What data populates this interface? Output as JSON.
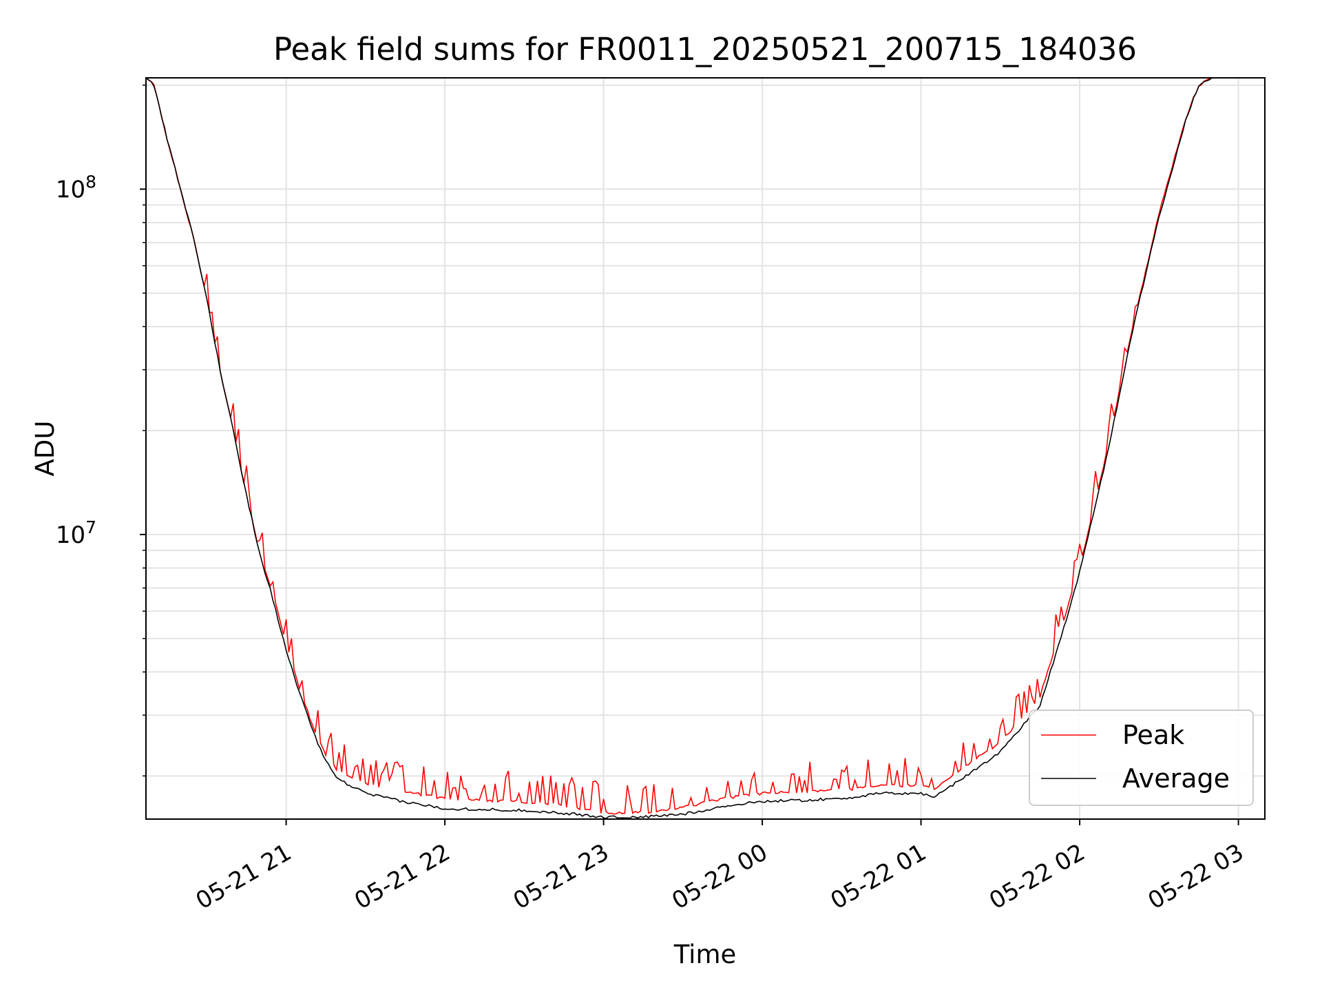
{
  "chart_data": {
    "type": "line",
    "title": "Peak field sums for FR0011_20250521_200715_184036",
    "xlabel": "Time",
    "ylabel": "ADU",
    "y_scale": "log",
    "xlim": [
      "2025-05-21 20:07",
      "2025-05-22 03:10"
    ],
    "ylim": [
      1500000,
      210000000
    ],
    "grid": true,
    "legend_position": "lower-right",
    "x_ticks": [
      "2025-05-21 21:00",
      "2025-05-21 22:00",
      "2025-05-21 23:00",
      "2025-05-22 00:00",
      "2025-05-22 01:00",
      "2025-05-22 02:00",
      "2025-05-22 03:00"
    ],
    "x_tick_labels": [
      "05-21 21",
      "05-21 22",
      "05-21 23",
      "05-22 00",
      "05-22 01",
      "05-22 02",
      "05-22 03"
    ],
    "y_ticks": [
      10000000,
      100000000
    ],
    "y_tick_mantissa": "10",
    "y_tick_exponents": [
      "7",
      "8"
    ],
    "series": [
      {
        "name": "Peak",
        "color": "#ff0000",
        "noise_spikes": true,
        "points": [
          [
            "2025-05-21 20:07",
            210000000
          ],
          [
            "2025-05-21 20:10",
            200000000
          ],
          [
            "2025-05-21 20:15",
            140000000
          ],
          [
            "2025-05-21 20:20",
            100000000
          ],
          [
            "2025-05-21 20:25",
            72000000
          ],
          [
            "2025-05-21 20:30",
            48000000
          ],
          [
            "2025-05-21 20:35",
            30000000
          ],
          [
            "2025-05-21 20:40",
            20000000
          ],
          [
            "2025-05-21 20:45",
            13000000
          ],
          [
            "2025-05-21 20:50",
            8800000
          ],
          [
            "2025-05-21 20:55",
            6800000
          ],
          [
            "2025-05-21 21:00",
            4800000
          ],
          [
            "2025-05-21 21:05",
            3600000
          ],
          [
            "2025-05-21 21:10",
            2800000
          ],
          [
            "2025-05-21 21:15",
            2300000
          ],
          [
            "2025-05-21 21:20",
            2050000
          ],
          [
            "2025-05-21 21:30",
            1900000
          ],
          [
            "2025-05-21 21:45",
            1800000
          ],
          [
            "2025-05-21 22:00",
            1720000
          ],
          [
            "2025-05-21 22:15",
            1700000
          ],
          [
            "2025-05-21 22:30",
            1680000
          ],
          [
            "2025-05-21 22:45",
            1640000
          ],
          [
            "2025-05-21 23:00",
            1560000
          ],
          [
            "2025-05-21 23:15",
            1570000
          ],
          [
            "2025-05-21 23:30",
            1620000
          ],
          [
            "2025-05-21 23:45",
            1720000
          ],
          [
            "2025-05-22 00:00",
            1780000
          ],
          [
            "2025-05-22 00:15",
            1800000
          ],
          [
            "2025-05-22 00:30",
            1820000
          ],
          [
            "2025-05-22 00:45",
            1870000
          ],
          [
            "2025-05-22 01:00",
            1880000
          ],
          [
            "2025-05-22 01:05",
            1820000
          ],
          [
            "2025-05-22 01:15",
            2100000
          ],
          [
            "2025-05-22 01:30",
            2500000
          ],
          [
            "2025-05-22 01:45",
            3400000
          ],
          [
            "2025-05-22 01:55",
            6000000
          ],
          [
            "2025-05-22 02:00",
            8000000
          ],
          [
            "2025-05-22 02:10",
            17000000
          ],
          [
            "2025-05-22 02:20",
            40000000
          ],
          [
            "2025-05-22 02:30",
            85000000
          ],
          [
            "2025-05-22 02:40",
            160000000
          ],
          [
            "2025-05-22 02:45",
            200000000
          ],
          [
            "2025-05-22 02:50",
            210000000
          ]
        ]
      },
      {
        "name": "Average",
        "color": "#000000",
        "noise_spikes": false,
        "points": [
          [
            "2025-05-21 20:07",
            210000000
          ],
          [
            "2025-05-21 20:10",
            200000000
          ],
          [
            "2025-05-21 20:15",
            140000000
          ],
          [
            "2025-05-21 20:20",
            100000000
          ],
          [
            "2025-05-21 20:25",
            72000000
          ],
          [
            "2025-05-21 20:30",
            48000000
          ],
          [
            "2025-05-21 20:35",
            30000000
          ],
          [
            "2025-05-21 20:40",
            20000000
          ],
          [
            "2025-05-21 20:45",
            13000000
          ],
          [
            "2025-05-21 20:50",
            8800000
          ],
          [
            "2025-05-21 20:55",
            6500000
          ],
          [
            "2025-05-21 21:00",
            4600000
          ],
          [
            "2025-05-21 21:05",
            3500000
          ],
          [
            "2025-05-21 21:10",
            2700000
          ],
          [
            "2025-05-21 21:15",
            2200000
          ],
          [
            "2025-05-21 21:20",
            1950000
          ],
          [
            "2025-05-21 21:30",
            1780000
          ],
          [
            "2025-05-21 21:45",
            1680000
          ],
          [
            "2025-05-21 22:00",
            1610000
          ],
          [
            "2025-05-21 22:15",
            1600000
          ],
          [
            "2025-05-21 22:30",
            1590000
          ],
          [
            "2025-05-21 22:45",
            1560000
          ],
          [
            "2025-05-21 23:00",
            1520000
          ],
          [
            "2025-05-21 23:15",
            1520000
          ],
          [
            "2025-05-21 23:30",
            1550000
          ],
          [
            "2025-05-21 23:45",
            1630000
          ],
          [
            "2025-05-22 00:00",
            1690000
          ],
          [
            "2025-05-22 00:15",
            1700000
          ],
          [
            "2025-05-22 00:30",
            1720000
          ],
          [
            "2025-05-22 00:45",
            1780000
          ],
          [
            "2025-05-22 01:00",
            1780000
          ],
          [
            "2025-05-22 01:05",
            1740000
          ],
          [
            "2025-05-22 01:15",
            1950000
          ],
          [
            "2025-05-22 01:30",
            2350000
          ],
          [
            "2025-05-22 01:45",
            3200000
          ],
          [
            "2025-05-22 01:55",
            5700000
          ],
          [
            "2025-05-22 02:00",
            7800000
          ],
          [
            "2025-05-22 02:10",
            16500000
          ],
          [
            "2025-05-22 02:20",
            39000000
          ],
          [
            "2025-05-22 02:30",
            83000000
          ],
          [
            "2025-05-22 02:40",
            158000000
          ],
          [
            "2025-05-22 02:45",
            200000000
          ],
          [
            "2025-05-22 02:50",
            210000000
          ]
        ]
      }
    ]
  }
}
